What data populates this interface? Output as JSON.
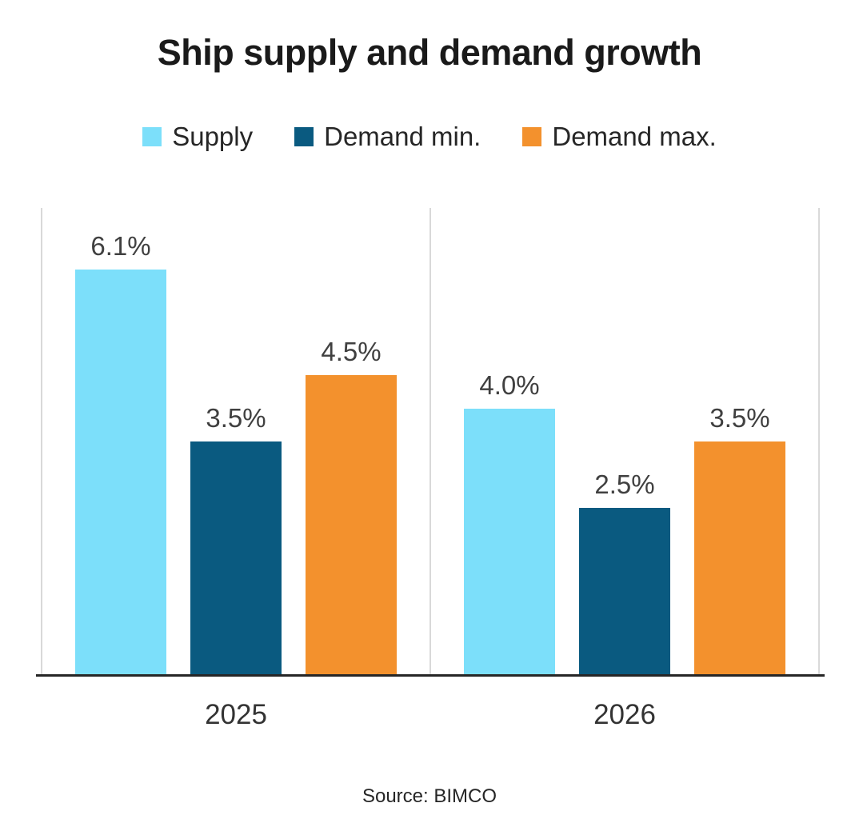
{
  "title": "Ship supply and demand growth",
  "source": "Source: BIMCO",
  "colors": {
    "supply": "#7CDFFA",
    "demand_min": "#0A5A80",
    "demand_max": "#F3912D",
    "axis_line": "#262626",
    "panel_border": "#D9D9D9",
    "value_label_text": "#404040",
    "title_text": "#1A1A1A"
  },
  "chart_data": {
    "type": "bar",
    "categories": [
      "2025",
      "2026"
    ],
    "series": [
      {
        "name": "Supply",
        "color": "#7CDFFA",
        "values": [
          6.1,
          4.0
        ]
      },
      {
        "name": "Demand min.",
        "color": "#0A5A80",
        "values": [
          3.5,
          2.5
        ]
      },
      {
        "name": "Demand max.",
        "color": "#F3912D",
        "values": [
          4.5,
          3.5
        ]
      }
    ],
    "value_labels": [
      [
        "6.1%",
        "3.5%",
        "4.5%"
      ],
      [
        "4.0%",
        "2.5%",
        "3.5%"
      ]
    ],
    "unit": "%",
    "ylim": [
      0,
      7.05
    ],
    "grid": false,
    "legend_position": "top",
    "value_labels_shown": true
  }
}
